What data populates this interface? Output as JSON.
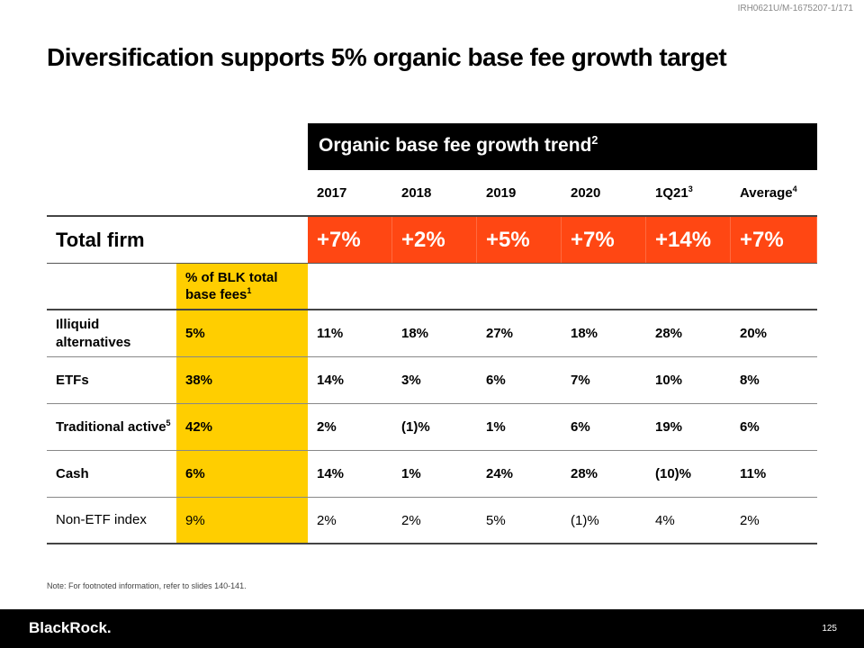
{
  "doc_code": "IRH0621U/M-1675207-1/171",
  "title": "Diversification supports 5% organic base fee growth target",
  "trend_header": {
    "text": "Organic base fee growth trend",
    "sup": "2"
  },
  "years": [
    {
      "label": "2017",
      "sup": ""
    },
    {
      "label": "2018",
      "sup": ""
    },
    {
      "label": "2019",
      "sup": ""
    },
    {
      "label": "2020",
      "sup": ""
    },
    {
      "label": "1Q21",
      "sup": "3"
    },
    {
      "label": "Average",
      "sup": "4"
    }
  ],
  "total_firm": {
    "label": "Total firm",
    "values": [
      "+7%",
      "+2%",
      "+5%",
      "+7%",
      "+14%",
      "+7%"
    ]
  },
  "pct_header": {
    "text": "% of BLK total base fees",
    "sup": "1"
  },
  "rows": [
    {
      "label": "Illiquid alternatives",
      "sup": "",
      "pct": "5%",
      "values": [
        "11%",
        "18%",
        "27%",
        "18%",
        "28%",
        "20%"
      ]
    },
    {
      "label": "ETFs",
      "sup": "",
      "pct": "38%",
      "values": [
        "14%",
        "3%",
        "6%",
        "7%",
        "10%",
        "8%"
      ]
    },
    {
      "label": "Traditional active",
      "sup": "5",
      "pct": "42%",
      "values": [
        "2%",
        "(1)%",
        "1%",
        "6%",
        "19%",
        "6%"
      ]
    },
    {
      "label": "Cash",
      "sup": "",
      "pct": "6%",
      "values": [
        "14%",
        "1%",
        "24%",
        "28%",
        "(10)%",
        "11%"
      ]
    },
    {
      "label": "Non-ETF index",
      "sup": "",
      "pct": "9%",
      "values": [
        "2%",
        "2%",
        "5%",
        "(1)%",
        "4%",
        "2%"
      ]
    }
  ],
  "note": "Note: For footnoted information, refer to slides 140-141.",
  "footer": {
    "logo": "BlackRock.",
    "page": "125"
  },
  "colors": {
    "orange": "#FF4713",
    "yellow": "#FFCE00"
  }
}
